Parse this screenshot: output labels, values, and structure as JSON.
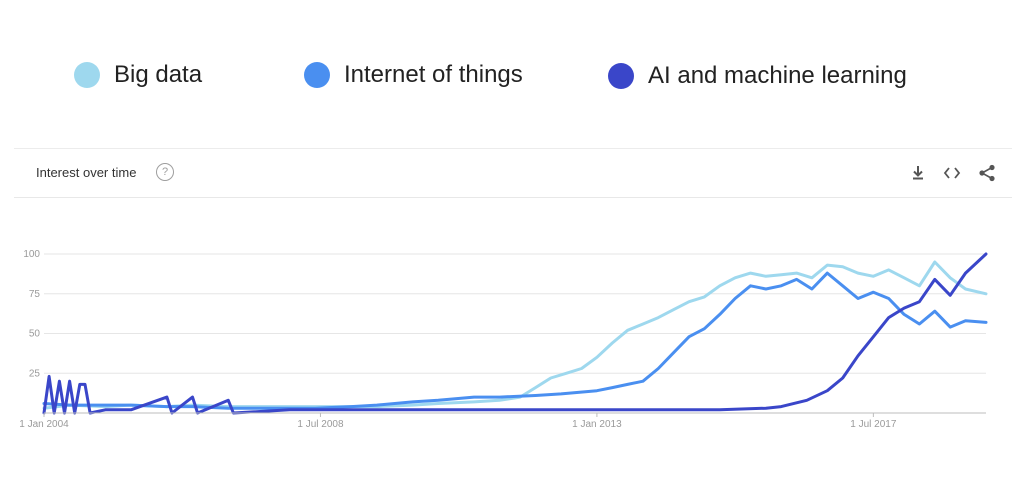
{
  "legend": {
    "items": [
      {
        "label": "Big data",
        "color": "#9ed8ee"
      },
      {
        "label": "Internet of things",
        "color": "#4a8ff0"
      },
      {
        "label": "AI and machine learning",
        "color": "#3a46c9"
      }
    ]
  },
  "card": {
    "title": "Interest over time",
    "help_glyph": "?",
    "icons": [
      "download-icon",
      "embed-code-icon",
      "share-icon"
    ]
  },
  "chart_data": {
    "type": "line",
    "title": "",
    "xlabel": "",
    "ylabel": "",
    "ylim": [
      0,
      100
    ],
    "yticks": [
      25,
      50,
      75,
      100
    ],
    "xlim": [
      "2004-01",
      "2019-05"
    ],
    "xticks": [
      {
        "date": "2004-01",
        "label": "1 Jan 2004"
      },
      {
        "date": "2008-07",
        "label": "1 Jul 2008"
      },
      {
        "date": "2013-01",
        "label": "1 Jan 2013"
      },
      {
        "date": "2017-07",
        "label": "1 Jul 2017"
      }
    ],
    "grid": true,
    "legend": "top",
    "series": [
      {
        "name": "Big data",
        "color": "#9ed8ee",
        "points": [
          [
            "2004-01",
            3
          ],
          [
            "2004-06",
            5
          ],
          [
            "2005-01",
            4
          ],
          [
            "2005-06",
            5
          ],
          [
            "2006-01",
            4
          ],
          [
            "2006-06",
            5
          ],
          [
            "2007-01",
            4
          ],
          [
            "2007-06",
            4
          ],
          [
            "2008-01",
            4
          ],
          [
            "2008-06",
            4
          ],
          [
            "2009-01",
            4
          ],
          [
            "2009-06",
            4
          ],
          [
            "2010-01",
            5
          ],
          [
            "2010-06",
            6
          ],
          [
            "2011-01",
            7
          ],
          [
            "2011-06",
            8
          ],
          [
            "2011-10",
            10
          ],
          [
            "2012-01",
            16
          ],
          [
            "2012-04",
            22
          ],
          [
            "2012-07",
            25
          ],
          [
            "2012-10",
            28
          ],
          [
            "2013-01",
            35
          ],
          [
            "2013-04",
            44
          ],
          [
            "2013-07",
            52
          ],
          [
            "2013-10",
            56
          ],
          [
            "2014-01",
            60
          ],
          [
            "2014-04",
            65
          ],
          [
            "2014-07",
            70
          ],
          [
            "2014-10",
            73
          ],
          [
            "2015-01",
            80
          ],
          [
            "2015-04",
            85
          ],
          [
            "2015-07",
            88
          ],
          [
            "2015-10",
            86
          ],
          [
            "2016-01",
            87
          ],
          [
            "2016-04",
            88
          ],
          [
            "2016-07",
            85
          ],
          [
            "2016-10",
            93
          ],
          [
            "2017-01",
            92
          ],
          [
            "2017-04",
            88
          ],
          [
            "2017-07",
            86
          ],
          [
            "2017-10",
            90
          ],
          [
            "2018-01",
            85
          ],
          [
            "2018-04",
            80
          ],
          [
            "2018-07",
            95
          ],
          [
            "2018-10",
            85
          ],
          [
            "2019-01",
            78
          ],
          [
            "2019-05",
            75
          ]
        ]
      },
      {
        "name": "Internet of things",
        "color": "#4a8ff0",
        "points": [
          [
            "2004-01",
            6
          ],
          [
            "2004-06",
            5
          ],
          [
            "2005-01",
            5
          ],
          [
            "2005-06",
            5
          ],
          [
            "2006-01",
            4
          ],
          [
            "2006-06",
            4
          ],
          [
            "2007-01",
            3
          ],
          [
            "2007-06",
            3
          ],
          [
            "2008-01",
            3
          ],
          [
            "2008-06",
            3
          ],
          [
            "2009-01",
            4
          ],
          [
            "2009-06",
            5
          ],
          [
            "2010-01",
            7
          ],
          [
            "2010-06",
            8
          ],
          [
            "2011-01",
            10
          ],
          [
            "2011-06",
            10
          ],
          [
            "2012-01",
            11
          ],
          [
            "2012-06",
            12
          ],
          [
            "2013-01",
            14
          ],
          [
            "2013-04",
            16
          ],
          [
            "2013-07",
            18
          ],
          [
            "2013-10",
            20
          ],
          [
            "2014-01",
            28
          ],
          [
            "2014-04",
            38
          ],
          [
            "2014-07",
            48
          ],
          [
            "2014-10",
            53
          ],
          [
            "2015-01",
            62
          ],
          [
            "2015-04",
            72
          ],
          [
            "2015-07",
            80
          ],
          [
            "2015-10",
            78
          ],
          [
            "2016-01",
            80
          ],
          [
            "2016-04",
            84
          ],
          [
            "2016-07",
            78
          ],
          [
            "2016-10",
            88
          ],
          [
            "2017-01",
            80
          ],
          [
            "2017-04",
            72
          ],
          [
            "2017-07",
            76
          ],
          [
            "2017-10",
            72
          ],
          [
            "2018-01",
            62
          ],
          [
            "2018-04",
            56
          ],
          [
            "2018-07",
            64
          ],
          [
            "2018-10",
            54
          ],
          [
            "2019-01",
            58
          ],
          [
            "2019-05",
            57
          ]
        ]
      },
      {
        "name": "AI and machine learning",
        "color": "#3a46c9",
        "points": [
          [
            "2004-01",
            0
          ],
          [
            "2004-02",
            23
          ],
          [
            "2004-03",
            0
          ],
          [
            "2004-04",
            20
          ],
          [
            "2004-05",
            0
          ],
          [
            "2004-06",
            20
          ],
          [
            "2004-07",
            0
          ],
          [
            "2004-08",
            18
          ],
          [
            "2004-09",
            18
          ],
          [
            "2004-10",
            0
          ],
          [
            "2005-01",
            2
          ],
          [
            "2005-06",
            2
          ],
          [
            "2006-01",
            10
          ],
          [
            "2006-02",
            0
          ],
          [
            "2006-06",
            10
          ],
          [
            "2006-07",
            0
          ],
          [
            "2007-01",
            8
          ],
          [
            "2007-02",
            0
          ],
          [
            "2008-01",
            2
          ],
          [
            "2009-01",
            2
          ],
          [
            "2010-01",
            2
          ],
          [
            "2011-01",
            2
          ],
          [
            "2012-01",
            2
          ],
          [
            "2013-01",
            2
          ],
          [
            "2014-01",
            2
          ],
          [
            "2015-01",
            2
          ],
          [
            "2015-10",
            3
          ],
          [
            "2016-01",
            4
          ],
          [
            "2016-06",
            8
          ],
          [
            "2016-10",
            14
          ],
          [
            "2017-01",
            22
          ],
          [
            "2017-04",
            36
          ],
          [
            "2017-07",
            48
          ],
          [
            "2017-10",
            60
          ],
          [
            "2018-01",
            66
          ],
          [
            "2018-04",
            70
          ],
          [
            "2018-07",
            84
          ],
          [
            "2018-10",
            74
          ],
          [
            "2019-01",
            88
          ],
          [
            "2019-05",
            100
          ]
        ]
      }
    ]
  }
}
